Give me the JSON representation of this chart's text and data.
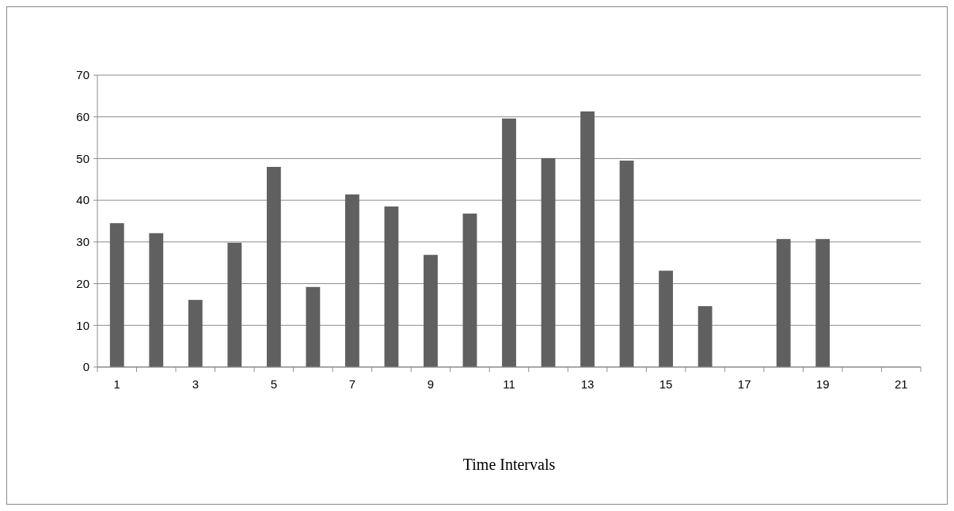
{
  "chart_data": {
    "type": "bar",
    "xlabel": "Time Intervals",
    "categories": [
      "1",
      null,
      "3",
      null,
      "5",
      null,
      "7",
      null,
      "9",
      null,
      "11",
      null,
      "13",
      null,
      "15",
      null,
      "17",
      null,
      "19",
      null,
      "21"
    ],
    "values": [
      34.5,
      32.1,
      16.1,
      29.8,
      48.0,
      19.2,
      41.4,
      38.5,
      26.9,
      36.8,
      59.6,
      50.1,
      61.3,
      49.5,
      23.1,
      14.6,
      null,
      30.7,
      30.7,
      null,
      null
    ],
    "color": "#606060",
    "ylim": [
      0,
      70
    ],
    "yticks": [
      0,
      10,
      20,
      30,
      40,
      50,
      60,
      70
    ],
    "grid": "y"
  }
}
